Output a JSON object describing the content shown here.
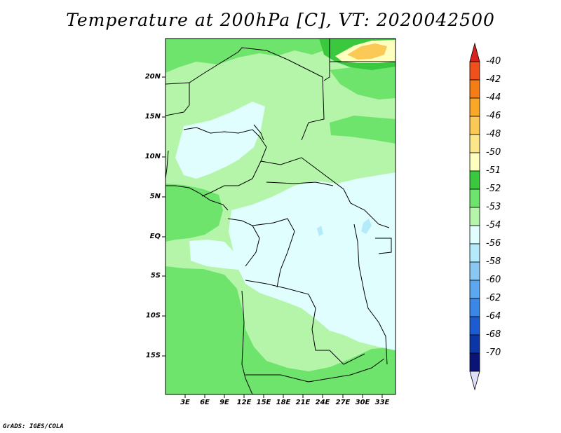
{
  "title": "Temperature at 200hPa [C], VT: 2020042500",
  "credit": "GrADS: IGES/COLA",
  "map": {
    "y_axis_labels": [
      "20N",
      "15N",
      "10N",
      "5N",
      "EQ",
      "5S",
      "10S",
      "15S"
    ],
    "x_axis_labels": [
      "3E",
      "6E",
      "9E",
      "12E",
      "15E",
      "18E",
      "21E",
      "24E",
      "27E",
      "30E",
      "33E"
    ]
  },
  "colorbar": {
    "levels": [
      "-40",
      "-42",
      "-44",
      "-46",
      "-48",
      "-50",
      "-51",
      "-52",
      "-53",
      "-54",
      "-56",
      "-58",
      "-60",
      "-62",
      "-64",
      "-68",
      "-70"
    ],
    "colors": [
      "#d7221f",
      "#f0501c",
      "#f57d15",
      "#f9a726",
      "#fbc955",
      "#fbe78a",
      "#fefebf",
      "#39c83e",
      "#6ee46c",
      "#b5f5a9",
      "#e0fefe",
      "#b4eafa",
      "#8bc7f3",
      "#5ba8f0",
      "#3a87e6",
      "#1d5cd0",
      "#0c36a6",
      "#0a1475",
      "#dfdff7"
    ]
  },
  "colors": {
    "land_base": "#b5f5a9",
    "cold_area": "#e0fefe",
    "warm_green": "#6ee46c",
    "dark_green": "#39c83e",
    "coast_lines": "#000000"
  }
}
